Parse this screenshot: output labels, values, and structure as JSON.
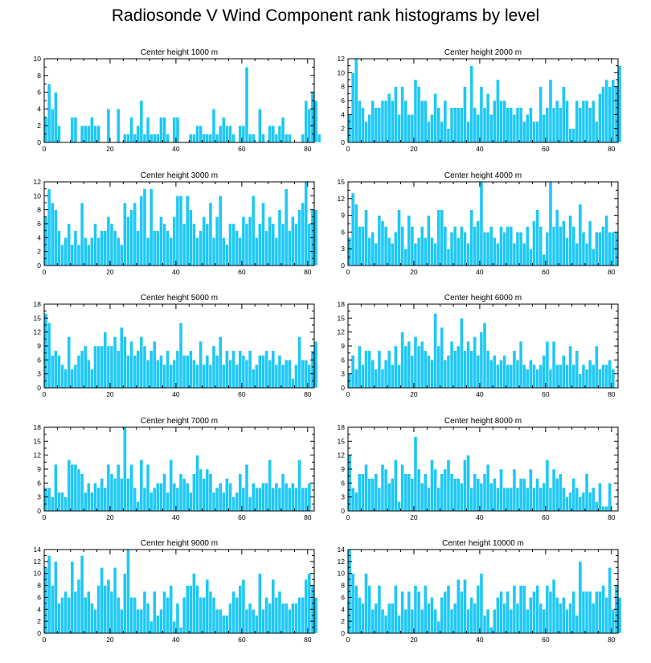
{
  "title": "Radiosonde V Wind Component rank histograms by level",
  "chart_data": [
    {
      "type": "bar",
      "title": "Center height 1000 m",
      "xlim": [
        0,
        82
      ],
      "ylim": [
        0,
        10
      ],
      "xticks": [
        0,
        20,
        40,
        60,
        80
      ],
      "yticks": [
        0,
        2,
        4,
        6,
        8,
        10
      ],
      "values": [
        3,
        7,
        4,
        6,
        2,
        0,
        0,
        0,
        3,
        3,
        0,
        2,
        2,
        2,
        3,
        2,
        2,
        0,
        0,
        4,
        0,
        0,
        4,
        0,
        1,
        1,
        3,
        1,
        2,
        5,
        1,
        3,
        1,
        1,
        1,
        3,
        3,
        1,
        0,
        3,
        3,
        0,
        0,
        0,
        1,
        1,
        2,
        2,
        1,
        1,
        1,
        4,
        1,
        2,
        3,
        2,
        2,
        1,
        0,
        2,
        2,
        9,
        1,
        1,
        0,
        4,
        1,
        0,
        2,
        2,
        1,
        2,
        3,
        1,
        1,
        0,
        0,
        0,
        1,
        5,
        4,
        6,
        5,
        1
      ]
    },
    {
      "type": "bar",
      "title": "Center height 2000 m",
      "xlim": [
        0,
        82
      ],
      "ylim": [
        0,
        12
      ],
      "xticks": [
        0,
        20,
        40,
        60,
        80
      ],
      "yticks": [
        0,
        2,
        4,
        6,
        8,
        10,
        12
      ],
      "values": [
        4,
        10,
        12,
        6,
        5,
        3,
        4,
        6,
        5,
        5,
        6,
        6,
        7,
        6,
        8,
        4,
        8,
        6,
        4,
        4,
        9,
        8,
        6,
        6,
        3,
        4,
        7,
        5,
        3,
        6,
        2,
        5,
        5,
        5,
        5,
        8,
        3,
        11,
        5,
        4,
        8,
        5,
        7,
        4,
        6,
        9,
        6,
        6,
        5,
        5,
        4,
        5,
        5,
        3,
        4,
        5,
        3,
        3,
        8,
        4,
        5,
        9,
        5,
        6,
        5,
        8,
        6,
        2,
        2,
        6,
        5,
        6,
        6,
        5,
        6,
        3,
        7,
        8,
        9,
        8,
        9,
        8,
        11
      ]
    },
    {
      "type": "bar",
      "title": "Center height 3000 m",
      "xlim": [
        0,
        82
      ],
      "ylim": [
        0,
        12
      ],
      "xticks": [
        0,
        20,
        40,
        60,
        80
      ],
      "yticks": [
        0,
        2,
        4,
        6,
        8,
        10,
        12
      ],
      "values": [
        7,
        11,
        9,
        8,
        5,
        3,
        4,
        6,
        3,
        5,
        3,
        9,
        4,
        3,
        4,
        6,
        4,
        5,
        5,
        7,
        6,
        5,
        4,
        3,
        9,
        7,
        8,
        9,
        5,
        10,
        11,
        4,
        11,
        5,
        5,
        7,
        6,
        5,
        4,
        7,
        10,
        10,
        6,
        10,
        8,
        6,
        4,
        5,
        7,
        6,
        9,
        4,
        7,
        10,
        4,
        3,
        6,
        6,
        5,
        4,
        7,
        6,
        7,
        10,
        4,
        6,
        9,
        5,
        7,
        6,
        4,
        8,
        6,
        11,
        5,
        7,
        6,
        8,
        9,
        12,
        6,
        8,
        8
      ]
    },
    {
      "type": "bar",
      "title": "Center height 4000 m",
      "xlim": [
        0,
        82
      ],
      "ylim": [
        0,
        15
      ],
      "xticks": [
        0,
        20,
        40,
        60,
        80
      ],
      "yticks": [
        0,
        3,
        6,
        9,
        12,
        15
      ],
      "values": [
        5,
        13,
        11,
        7,
        7,
        10,
        5,
        6,
        4,
        9,
        8,
        7,
        5,
        4,
        6,
        10,
        7,
        3,
        9,
        7,
        4,
        5,
        7,
        5,
        9,
        5,
        4,
        10,
        10,
        7,
        3,
        6,
        7,
        5,
        7,
        6,
        4,
        10,
        7,
        8,
        15,
        6,
        6,
        7,
        5,
        4,
        7,
        6,
        7,
        7,
        4,
        6,
        6,
        4,
        7,
        3,
        8,
        10,
        7,
        2,
        6,
        15,
        7,
        10,
        7,
        8,
        5,
        9,
        7,
        4,
        11,
        6,
        4,
        8,
        3,
        6,
        6,
        7,
        9,
        6,
        6,
        6
      ]
    },
    {
      "type": "bar",
      "title": "Center height 5000 m",
      "xlim": [
        0,
        82
      ],
      "ylim": [
        0,
        18
      ],
      "xticks": [
        0,
        20,
        40,
        60,
        80
      ],
      "yticks": [
        0,
        3,
        6,
        9,
        12,
        15,
        18
      ],
      "values": [
        16,
        14,
        7,
        8,
        7,
        5,
        4,
        11,
        4,
        5,
        7,
        8,
        9,
        6,
        4,
        9,
        9,
        9,
        12,
        9,
        9,
        11,
        8,
        13,
        11,
        7,
        10,
        7,
        8,
        11,
        9,
        6,
        8,
        10,
        6,
        7,
        5,
        8,
        5,
        6,
        8,
        14,
        7,
        7,
        8,
        6,
        5,
        10,
        5,
        7,
        5,
        9,
        7,
        11,
        5,
        8,
        6,
        8,
        5,
        8,
        7,
        6,
        8,
        4,
        5,
        7,
        7,
        8,
        6,
        8,
        5,
        7,
        5,
        6,
        6,
        2,
        5,
        11,
        6,
        6,
        5,
        8,
        10
      ]
    },
    {
      "type": "bar",
      "title": "Center height 6000 m",
      "xlim": [
        0,
        82
      ],
      "ylim": [
        0,
        18
      ],
      "xticks": [
        0,
        20,
        40,
        60,
        80
      ],
      "yticks": [
        0,
        3,
        6,
        9,
        12,
        15,
        18
      ],
      "values": [
        3,
        7,
        4,
        9,
        5,
        8,
        8,
        6,
        4,
        8,
        4,
        6,
        8,
        5,
        9,
        5,
        12,
        9,
        10,
        7,
        11,
        9,
        10,
        8,
        7,
        6,
        16,
        9,
        13,
        6,
        7,
        10,
        8,
        9,
        15,
        8,
        10,
        8,
        11,
        7,
        12,
        14,
        8,
        6,
        7,
        5,
        6,
        7,
        5,
        5,
        8,
        6,
        10,
        5,
        4,
        6,
        5,
        4,
        5,
        7,
        10,
        4,
        10,
        5,
        5,
        7,
        5,
        9,
        5,
        8,
        3,
        5,
        4,
        6,
        5,
        9,
        4,
        5,
        5,
        6,
        4
      ]
    },
    {
      "type": "bar",
      "title": "Center height 7000 m",
      "xlim": [
        0,
        82
      ],
      "ylim": [
        0,
        18
      ],
      "xticks": [
        0,
        20,
        40,
        60,
        80
      ],
      "yticks": [
        0,
        3,
        6,
        9,
        12,
        15,
        18
      ],
      "values": [
        5,
        5,
        3,
        10,
        4,
        4,
        3,
        11,
        10,
        10,
        9,
        8,
        4,
        6,
        4,
        6,
        5,
        7,
        5,
        10,
        8,
        7,
        10,
        7,
        18,
        7,
        10,
        5,
        2,
        11,
        5,
        10,
        4,
        5,
        6,
        6,
        8,
        4,
        11,
        6,
        5,
        8,
        7,
        6,
        4,
        8,
        12,
        9,
        7,
        9,
        8,
        4,
        5,
        6,
        4,
        7,
        6,
        3,
        4,
        8,
        5,
        10,
        3,
        6,
        5,
        5,
        6,
        6,
        11,
        5,
        6,
        5,
        8,
        6,
        5,
        6,
        5,
        11,
        5,
        5,
        6
      ]
    },
    {
      "type": "bar",
      "title": "Center height 8000 m",
      "xlim": [
        0,
        82
      ],
      "ylim": [
        0,
        18
      ],
      "xticks": [
        0,
        20,
        40,
        60,
        80
      ],
      "yticks": [
        0,
        3,
        6,
        9,
        12,
        15,
        18
      ],
      "values": [
        12,
        5,
        4,
        8,
        8,
        10,
        7,
        7,
        8,
        5,
        10,
        9,
        6,
        7,
        11,
        2,
        10,
        8,
        8,
        7,
        16,
        9,
        6,
        8,
        5,
        11,
        9,
        5,
        8,
        9,
        11,
        8,
        7,
        7,
        6,
        11,
        12,
        5,
        8,
        7,
        6,
        8,
        10,
        6,
        7,
        5,
        9,
        5,
        5,
        5,
        9,
        5,
        7,
        7,
        5,
        9,
        5,
        7,
        5,
        6,
        11,
        5,
        9,
        7,
        8,
        5,
        3,
        4,
        7,
        5,
        3,
        4,
        8,
        4,
        5,
        2,
        6,
        1,
        1,
        6
      ]
    },
    {
      "type": "bar",
      "title": "Center height 9000 m",
      "xlim": [
        0,
        82
      ],
      "ylim": [
        0,
        14
      ],
      "xticks": [
        0,
        20,
        40,
        60,
        80
      ],
      "yticks": [
        0,
        2,
        4,
        6,
        8,
        10,
        12,
        14
      ],
      "values": [
        11,
        13,
        8,
        12,
        5,
        6,
        7,
        6,
        12,
        7,
        9,
        13,
        6,
        7,
        5,
        4,
        8,
        11,
        8,
        9,
        7,
        11,
        6,
        4,
        10,
        14,
        6,
        6,
        4,
        4,
        7,
        5,
        2,
        7,
        3,
        4,
        7,
        6,
        8,
        2,
        5,
        1,
        6,
        8,
        8,
        10,
        8,
        6,
        6,
        9,
        7,
        6,
        4,
        4,
        3,
        3,
        5,
        7,
        6,
        8,
        9,
        4,
        5,
        4,
        3,
        10,
        4,
        6,
        5,
        9,
        6,
        7,
        5,
        5,
        4,
        5,
        5,
        6,
        6,
        9,
        10,
        8,
        6
      ]
    },
    {
      "type": "bar",
      "title": "Center height 10000 m",
      "xlim": [
        0,
        82
      ],
      "ylim": [
        0,
        14
      ],
      "xticks": [
        0,
        20,
        40,
        60,
        80
      ],
      "yticks": [
        0,
        2,
        4,
        6,
        8,
        10,
        12,
        14
      ],
      "values": [
        14,
        10,
        8,
        6,
        5,
        10,
        8,
        4,
        5,
        8,
        4,
        3,
        5,
        5,
        8,
        3,
        7,
        4,
        7,
        4,
        8,
        7,
        4,
        8,
        5,
        6,
        4,
        2,
        6,
        7,
        8,
        4,
        5,
        9,
        7,
        9,
        4,
        6,
        5,
        8,
        10,
        3,
        4,
        1,
        4,
        6,
        7,
        5,
        7,
        4,
        8,
        5,
        8,
        8,
        4,
        6,
        7,
        8,
        5,
        4,
        8,
        7,
        9,
        6,
        5,
        6,
        4,
        5,
        7,
        3,
        12,
        7,
        7,
        7,
        5,
        7,
        7,
        8,
        6,
        11,
        4,
        8,
        6
      ]
    }
  ]
}
